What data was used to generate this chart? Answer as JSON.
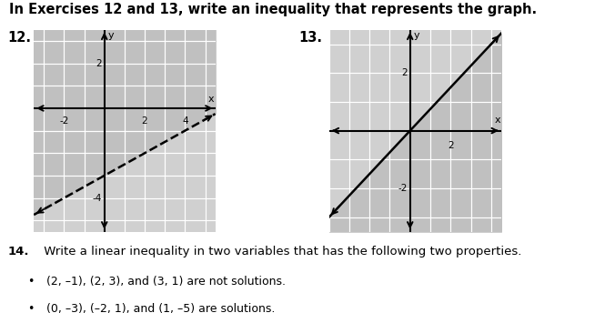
{
  "title": "In Exercises 12 and 13, write an inequality that represents the graph.",
  "title_fontsize": 10.5,
  "background": "#ffffff",
  "graph_bg": "#d0d0d0",
  "shade_color": "#c0c0c0",
  "grid_color": "#ffffff",
  "q14_label": "14.",
  "q14_text": " Write a linear inequality in two variables that has the following two properties.",
  "bullet1": "(2, –1), (2, 3), and (3, 1) are not solutions.",
  "bullet2": "(0, –3), (–2, 1), and (1, –5) are solutions.",
  "graph12_label": "12.",
  "graph13_label": "13.",
  "graph12_xlim": [
    -3.5,
    5.5
  ],
  "graph12_ylim": [
    -5.5,
    3.5
  ],
  "graph12_xticks": [
    -2,
    2,
    4
  ],
  "graph12_yticks": [
    -4,
    2
  ],
  "graph12_slope": 0.5,
  "graph12_intercept": -3.0,
  "graph13_xlim": [
    -4.0,
    4.5
  ],
  "graph13_ylim": [
    -3.5,
    3.5
  ],
  "graph13_xticks": [
    2
  ],
  "graph13_yticks": [
    -2,
    2
  ],
  "graph13_slope": 0.75,
  "graph13_intercept": 0.0
}
